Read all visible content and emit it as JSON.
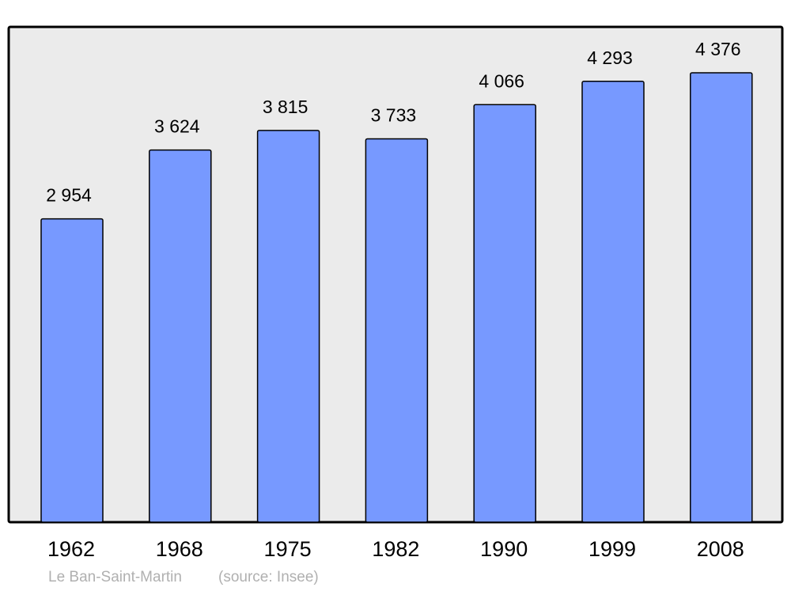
{
  "chart_data": {
    "type": "bar",
    "categories": [
      "1962",
      "1968",
      "1975",
      "1982",
      "1990",
      "1999",
      "2008"
    ],
    "values": [
      2954,
      3624,
      3815,
      3733,
      4066,
      4293,
      4376
    ],
    "value_labels": [
      "2 954",
      "3 624",
      "3 815",
      "3 733",
      "4 066",
      "4 293",
      "4 376"
    ],
    "color": "#7799ff",
    "place": "Le Ban-Saint-Martin",
    "source": "(source: Insee)"
  }
}
